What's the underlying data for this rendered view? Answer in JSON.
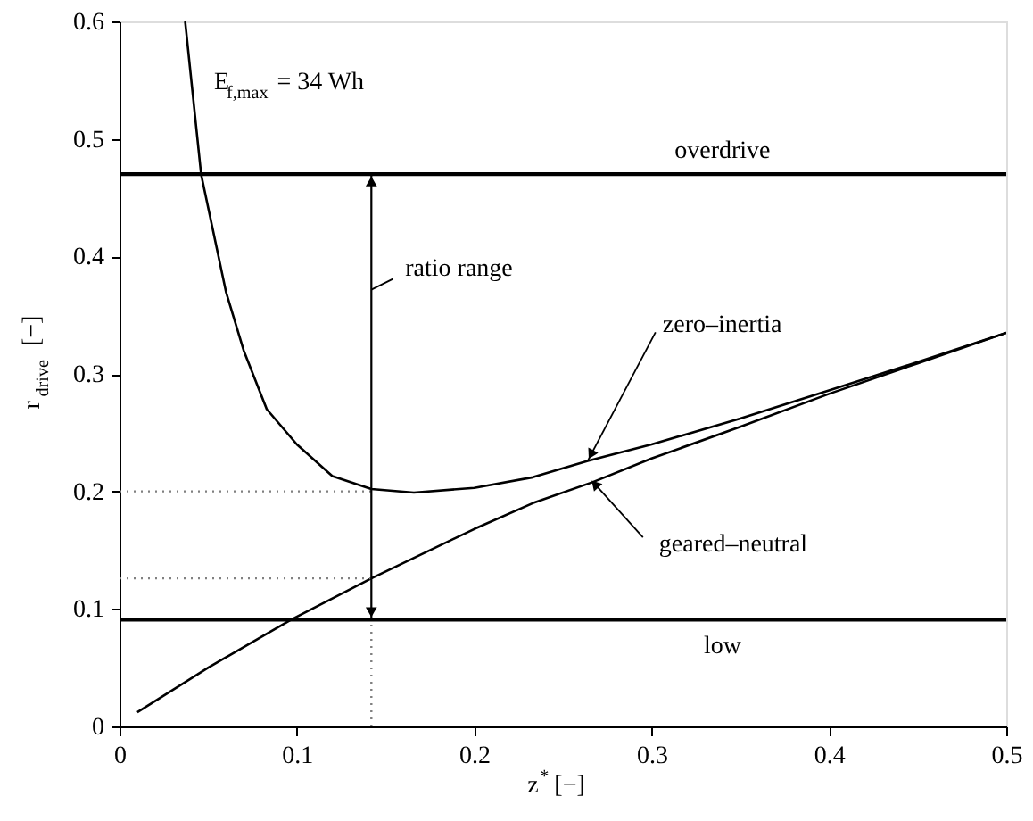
{
  "chart_data": {
    "type": "line",
    "xlabel": "z$^{*}$ [−]",
    "ylabel": "r$_{drive}$ [−]",
    "xlim": [
      0,
      0.5
    ],
    "ylim": [
      0,
      0.6
    ],
    "xticks": [
      0,
      0.1,
      0.2,
      0.3,
      0.4,
      0.5
    ],
    "yticks": [
      0,
      0.1,
      0.2,
      0.3,
      0.4,
      0.5,
      0.6
    ],
    "grid": false,
    "series": [
      {
        "color": "#000000",
        "line_style": "solid",
        "x": [
          0.037,
          0.046,
          0.06,
          0.07,
          0.083,
          0.1,
          0.12,
          0.142,
          0.166,
          0.2,
          0.233,
          0.264,
          0.3,
          0.35,
          0.4,
          0.45,
          0.5
        ],
        "values": [
          0.6,
          0.47,
          0.37,
          0.32,
          0.27,
          0.24,
          0.213,
          0.202,
          0.199,
          0.203,
          0.212,
          0.226,
          0.24,
          0.262,
          0.286,
          0.31,
          0.335
        ]
      },
      {
        "color": "#000000",
        "line_style": "solid",
        "x": [
          0.01,
          0.05,
          0.097,
          0.142,
          0.2,
          0.233,
          0.267,
          0.3,
          0.35,
          0.4,
          0.45,
          0.5
        ],
        "values": [
          0.012,
          0.05,
          0.091,
          0.126,
          0.168,
          0.19,
          0.208,
          0.228,
          0.255,
          0.283,
          0.309,
          0.335
        ]
      },
      {
        "color": "#808080",
        "line_style": "dotted",
        "x": [
          0,
          0.142
        ],
        "values": [
          0.2,
          0.2
        ]
      },
      {
        "color": "#808080",
        "line_style": "dotted",
        "x": [
          0,
          0.142
        ],
        "values": [
          0.126,
          0.126
        ]
      },
      {
        "color": "#808080",
        "line_style": "dotted",
        "x": [
          0.142,
          0.142
        ],
        "values": [
          0,
          0.091
        ]
      }
    ],
    "ref_lines": [
      {
        "axis": "y",
        "value": 0.47,
        "label": "overdrive",
        "color": "#000000"
      },
      {
        "axis": "y",
        "value": 0.091,
        "label": "low",
        "color": "#000000"
      }
    ],
    "annotations": [
      "E$_{f,max}$= 34 Wh",
      {
        "text": "zero–inertia",
        "x": 0.264,
        "y": 0.226
      },
      {
        "text": "geared–neutral",
        "x": 0.267,
        "y": 0.208
      },
      "ratio range"
    ]
  }
}
